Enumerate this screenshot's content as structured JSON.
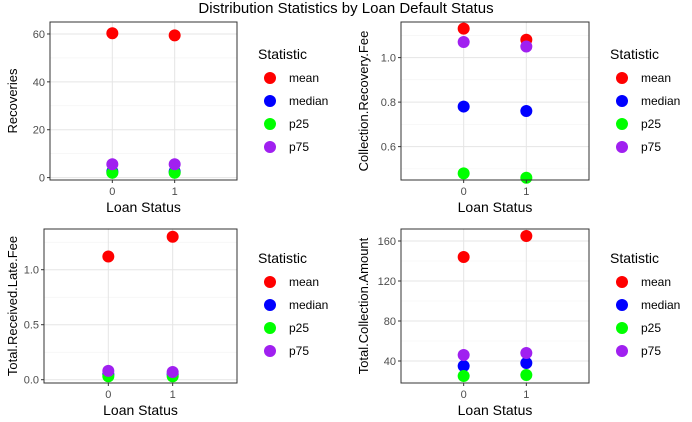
{
  "figure": {
    "title": "Distribution Statistics by Loan Default Status"
  },
  "legend": {
    "title": "Statistic",
    "entries": [
      {
        "label": "mean",
        "color": "#ff0000"
      },
      {
        "label": "median",
        "color": "#0000ff"
      },
      {
        "label": "p25",
        "color": "#00ff00"
      },
      {
        "label": "p75",
        "color": "#a020f0"
      }
    ]
  },
  "chart_data": [
    {
      "type": "scatter",
      "title": "",
      "xlabel": "Loan Status",
      "ylabel": "Recoveries",
      "categories": [
        "0",
        "1"
      ],
      "ylim": [
        -1,
        65
      ],
      "yticks": [
        0,
        20,
        40,
        60
      ],
      "grid": true,
      "legend_placement": "right",
      "series": [
        {
          "name": "mean",
          "values": [
            60.3,
            59.4
          ]
        },
        {
          "name": "median",
          "values": [
            2.5,
            2.5
          ]
        },
        {
          "name": "p25",
          "values": [
            2.0,
            2.0
          ]
        },
        {
          "name": "p75",
          "values": [
            5.6,
            5.6
          ]
        }
      ]
    },
    {
      "type": "scatter",
      "title": "",
      "xlabel": "Loan Status",
      "ylabel": "Collection.Recovery.Fee",
      "categories": [
        "0",
        "1"
      ],
      "ylim": [
        0.45,
        1.16
      ],
      "yticks": [
        0.6,
        0.8,
        1.0
      ],
      "grid": true,
      "legend_placement": "right",
      "series": [
        {
          "name": "mean",
          "values": [
            1.13,
            1.08
          ]
        },
        {
          "name": "median",
          "values": [
            0.78,
            0.76
          ]
        },
        {
          "name": "p25",
          "values": [
            0.48,
            0.46
          ]
        },
        {
          "name": "p75",
          "values": [
            1.07,
            1.05
          ]
        }
      ]
    },
    {
      "type": "scatter",
      "title": "",
      "xlabel": "Loan Status",
      "ylabel": "Total.Received.Late.Fee",
      "categories": [
        "0",
        "1"
      ],
      "ylim": [
        -0.03,
        1.37
      ],
      "yticks": [
        0.0,
        0.5,
        1.0
      ],
      "grid": true,
      "legend_placement": "right",
      "series": [
        {
          "name": "mean",
          "values": [
            1.12,
            1.3
          ]
        },
        {
          "name": "median",
          "values": [
            0.05,
            0.05
          ]
        },
        {
          "name": "p25",
          "values": [
            0.03,
            0.03
          ]
        },
        {
          "name": "p75",
          "values": [
            0.08,
            0.07
          ]
        }
      ]
    },
    {
      "type": "scatter",
      "title": "",
      "xlabel": "Loan Status",
      "ylabel": "Total.Collection.Amount",
      "categories": [
        "0",
        "1"
      ],
      "ylim": [
        18,
        172
      ],
      "yticks": [
        40,
        80,
        120,
        160
      ],
      "grid": true,
      "legend_placement": "right",
      "series": [
        {
          "name": "mean",
          "values": [
            144,
            165
          ]
        },
        {
          "name": "median",
          "values": [
            35,
            38
          ]
        },
        {
          "name": "p25",
          "values": [
            25,
            26
          ]
        },
        {
          "name": "p75",
          "values": [
            46,
            48
          ]
        }
      ]
    }
  ]
}
